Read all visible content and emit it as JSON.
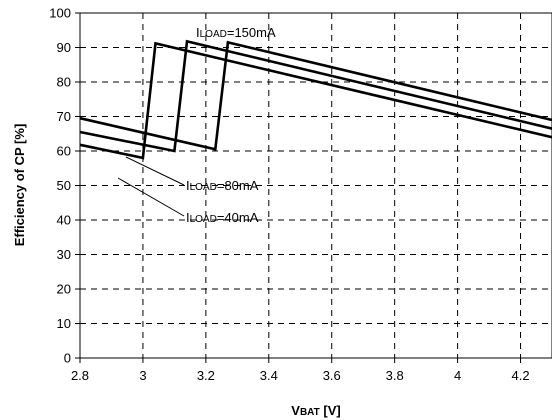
{
  "chart_data": {
    "type": "line",
    "title": "",
    "ylabel": "Efficiency of CP [%]",
    "xlabel": {
      "prefix": "V",
      "sub": "BAT",
      "suffix": " [V]"
    },
    "xlim": [
      2.8,
      4.3
    ],
    "ylim": [
      0,
      100
    ],
    "x_ticks": [
      2.8,
      3,
      3.2,
      3.4,
      3.6,
      3.8,
      4,
      4.2
    ],
    "x_tick_labels": [
      "2.8",
      "3",
      "3.2",
      "3.4",
      "3.6",
      "3.8",
      "4",
      "4.2"
    ],
    "y_ticks": [
      0,
      10,
      20,
      30,
      40,
      50,
      60,
      70,
      80,
      90,
      100
    ],
    "y_tick_labels": [
      "0",
      "10",
      "20",
      "30",
      "40",
      "50",
      "60",
      "70",
      "80",
      "90",
      "100"
    ],
    "grid": true,
    "series": [
      {
        "name": "ILOAD=150mA",
        "label": {
          "prefix": "I",
          "sub": "LOAD",
          "suffix": "=150mA"
        },
        "x": [
          2.8,
          3.23,
          3.27,
          4.3
        ],
        "y": [
          69.5,
          60.5,
          91.5,
          69
        ]
      },
      {
        "name": "ILOAD=80mA",
        "label": {
          "prefix": "I",
          "sub": "LOAD",
          "suffix": "=80mA"
        },
        "x": [
          2.8,
          3.1,
          3.14,
          4.3
        ],
        "y": [
          65.5,
          60,
          91.8,
          66.5
        ]
      },
      {
        "name": "ILOAD=40mA",
        "label": {
          "prefix": "I",
          "sub": "LOAD",
          "suffix": "=40mA"
        },
        "x": [
          2.8,
          3.0,
          3.04,
          4.3
        ],
        "y": [
          61.8,
          58,
          91.2,
          64
        ]
      }
    ]
  }
}
